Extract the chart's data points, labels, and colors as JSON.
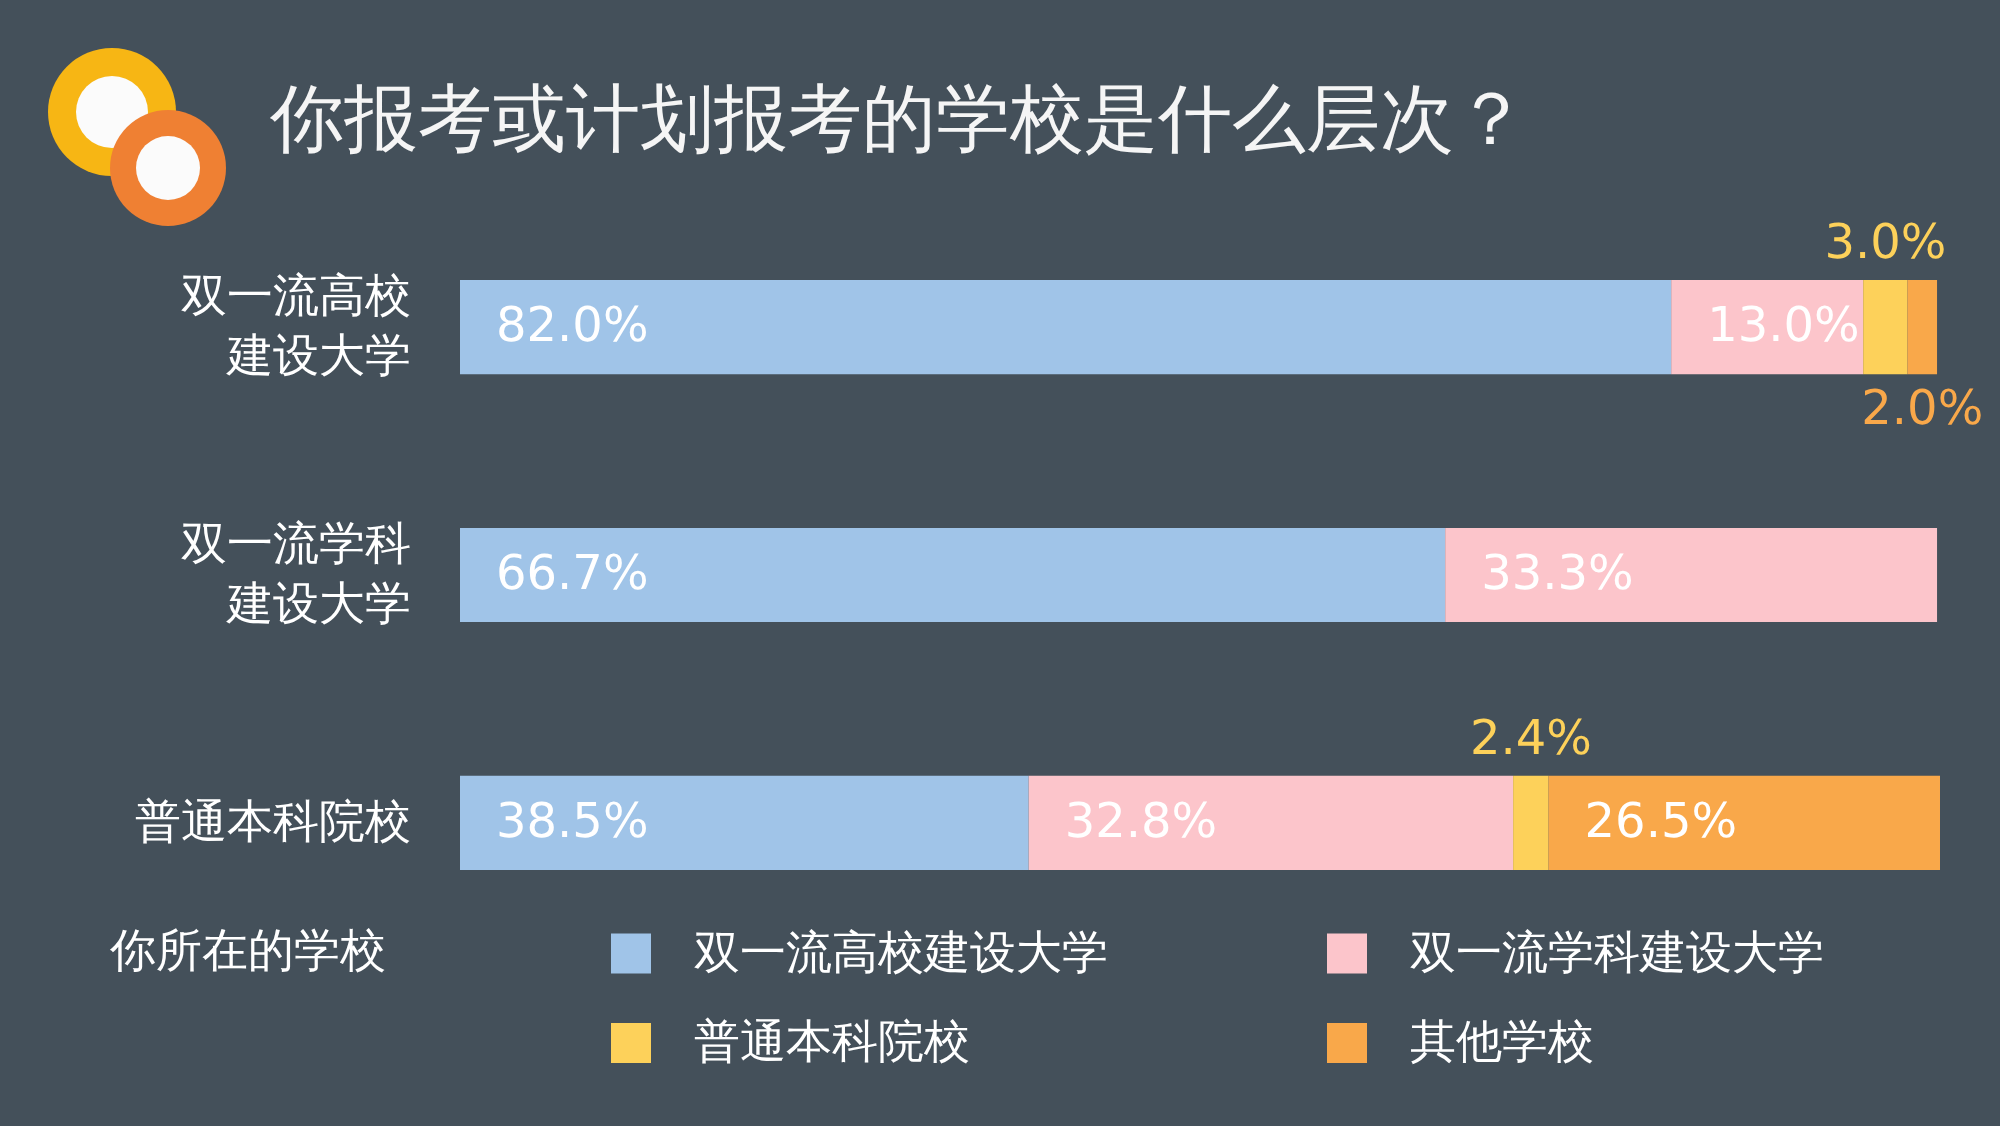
{
  "chart_data": {
    "type": "bar",
    "orientation": "horizontal",
    "stacked": true,
    "title": "你报考或计划报考的学校是什么层次？",
    "legend_title": "你所在的学校",
    "legend": "bottom",
    "tick_labels": "y",
    "categories": [
      "双一流高校建设大学",
      "双一流学科建设大学",
      "普通本科院校"
    ],
    "series": [
      {
        "name": "双一流高校建设大学",
        "color": "#a0c4e8",
        "values": [
          82.0,
          66.7,
          38.5
        ],
        "value_labels": [
          "82.0%",
          "66.7%",
          "38.5%"
        ]
      },
      {
        "name": "双一流学科建设大学",
        "color": "#fcc5cb",
        "values": [
          13.0,
          33.3,
          32.8
        ],
        "value_labels": [
          "13.0%",
          "33.3%",
          "32.8%"
        ]
      },
      {
        "name": "普通本科院校",
        "color": "#fdd15a",
        "values": [
          3.0,
          null,
          2.4
        ],
        "value_labels": [
          "3.0%",
          null,
          "2.4%"
        ]
      },
      {
        "name": "其他学校",
        "color": "#f9a84a",
        "values": [
          2.0,
          null,
          26.5
        ],
        "value_labels": [
          "2.0%",
          null,
          "26.5%"
        ]
      }
    ]
  }
}
